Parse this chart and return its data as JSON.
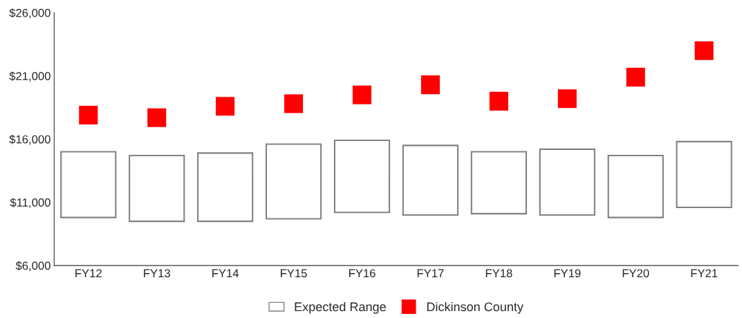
{
  "chart_data": {
    "type": "bar",
    "categories": [
      "FY12",
      "FY13",
      "FY14",
      "FY15",
      "FY16",
      "FY17",
      "FY18",
      "FY19",
      "FY20",
      "FY21"
    ],
    "series": [
      {
        "name": "Expected Range",
        "color": "#ffffff",
        "base": [
          9800,
          9500,
          9500,
          9700,
          10200,
          10000,
          10100,
          10000,
          9800,
          10600
        ],
        "values": [
          5200,
          5200,
          5400,
          5900,
          5700,
          5500,
          4900,
          5200,
          4900,
          5200
        ]
      },
      {
        "name": "Dickinson County",
        "type": "scatter",
        "color": "#ff0000",
        "marker": "square",
        "values": [
          17900,
          17700,
          18600,
          18800,
          19500,
          20300,
          19000,
          19200,
          20900,
          23000
        ]
      }
    ],
    "ylim": [
      6000,
      26000
    ],
    "yticks": [
      {
        "value": 6000,
        "label": "$6,000"
      },
      {
        "value": 11000,
        "label": "$11,000"
      },
      {
        "value": 16000,
        "label": "$16,000"
      },
      {
        "value": 21000,
        "label": "$21,000"
      },
      {
        "value": 26000,
        "label": "$26,000"
      }
    ],
    "grid": false,
    "legend": "bottom"
  }
}
